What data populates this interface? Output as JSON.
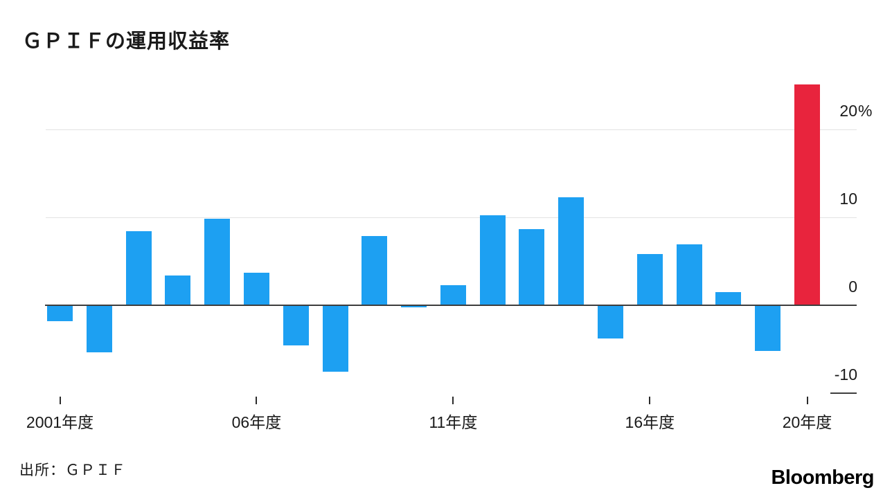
{
  "title": "ＧＰＩＦの運用収益率",
  "source": "出所：ＧＰＩＦ",
  "branding": "Bloomberg",
  "colors": {
    "bar": "#1da0f2",
    "highlight": "#e8243d",
    "grid": "#e2e2e2",
    "axis": "#3d3d3d",
    "text": "#1a1a1a"
  },
  "chart_data": {
    "type": "bar",
    "title": "ＧＰＩＦの運用収益率",
    "unit": "%",
    "categories": [
      "2001",
      "2002",
      "2003",
      "2004",
      "2005",
      "2006",
      "2007",
      "2008",
      "2009",
      "2010",
      "2011",
      "2012",
      "2013",
      "2014",
      "2015",
      "2016",
      "2017",
      "2018",
      "2019",
      "2020"
    ],
    "values": [
      -1.8,
      -5.36,
      8.4,
      3.39,
      9.88,
      3.7,
      -4.59,
      -7.57,
      7.91,
      -0.25,
      2.32,
      10.23,
      8.64,
      12.27,
      -3.81,
      5.86,
      6.9,
      1.52,
      -5.2,
      25.15
    ],
    "highlight_index": 19,
    "bar_color": "#1da0f2",
    "highlight_color": "#e8243d",
    "x_ticks": [
      {
        "index": 0,
        "label": "2001年度"
      },
      {
        "index": 5,
        "label": "06年度"
      },
      {
        "index": 10,
        "label": "11年度"
      },
      {
        "index": 15,
        "label": "16年度"
      },
      {
        "index": 19,
        "label": "20年度"
      }
    ],
    "y_ticks": [
      {
        "value": 20,
        "label": "20",
        "suffix": "%"
      },
      {
        "value": 10,
        "label": "10",
        "suffix": ""
      },
      {
        "value": 0,
        "label": "0",
        "suffix": ""
      },
      {
        "value": -10,
        "label": "-10",
        "suffix": ""
      }
    ],
    "ylim": [
      -10.5,
      25.5
    ],
    "grid": "horizontal",
    "legend": "none"
  }
}
